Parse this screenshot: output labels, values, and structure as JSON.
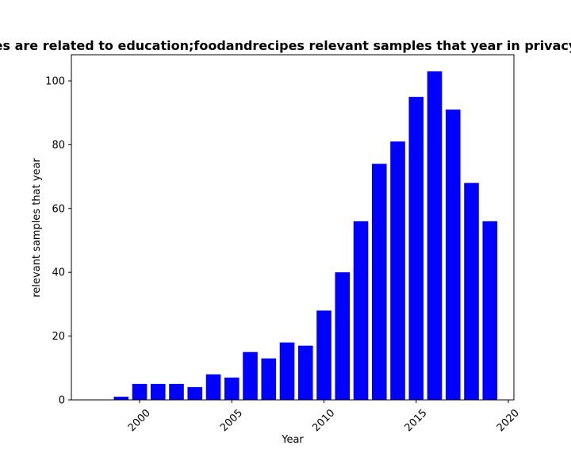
{
  "chart_data": {
    "type": "bar",
    "title": "es are related to education;foodandrecipes relevant samples that year in privacy",
    "xlabel": "Year",
    "ylabel": "relevant samples that year",
    "x": [
      1999,
      2000,
      2001,
      2002,
      2003,
      2004,
      2005,
      2006,
      2007,
      2008,
      2009,
      2010,
      2011,
      2012,
      2013,
      2014,
      2015,
      2016,
      2017,
      2018,
      2019
    ],
    "values": [
      1,
      5,
      5,
      5,
      4,
      8,
      7,
      15,
      13,
      18,
      17,
      28,
      40,
      56,
      74,
      81,
      95,
      103,
      91,
      68,
      56
    ],
    "xlim": [
      1996.3,
      2020.3
    ],
    "ylim": [
      0,
      108.2
    ],
    "xticks": [
      2000,
      2005,
      2010,
      2015,
      2020
    ],
    "yticks": [
      0,
      20,
      40,
      60,
      80,
      100
    ],
    "bar_color": "#0000ff",
    "grid": false,
    "legend": "none"
  }
}
